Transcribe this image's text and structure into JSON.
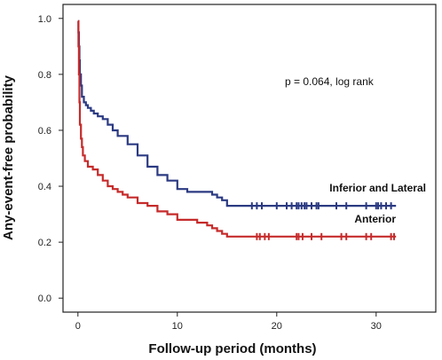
{
  "chart_data": {
    "type": "line",
    "subtype": "kaplan-meier",
    "xlabel": "Follow-up period (months)",
    "ylabel": "Any-event-free probability",
    "xlim": [
      -1.5,
      36
    ],
    "ylim": [
      -0.05,
      1.05
    ],
    "xticks": [
      0,
      10,
      20,
      30
    ],
    "yticks": [
      0.0,
      0.2,
      0.4,
      0.6,
      0.8,
      1.0
    ],
    "xtick_labels": [
      "0",
      "10",
      "20",
      "30"
    ],
    "ytick_labels": [
      "0.0",
      "0.2",
      "0.4",
      "0.6",
      "0.8",
      "1.0"
    ],
    "annotations": [
      {
        "text": "p = 0.064, log rank"
      }
    ],
    "series": [
      {
        "name": "Inferior and Lateral",
        "color": "#2b3a82",
        "x": [
          0,
          0.05,
          0.1,
          0.15,
          0.2,
          0.3,
          0.4,
          0.6,
          0.8,
          1.0,
          1.3,
          1.6,
          2.0,
          2.5,
          3.0,
          3.5,
          4.0,
          5.0,
          6.0,
          7.0,
          8.0,
          9.0,
          10.0,
          11.0,
          12.0,
          13.0,
          13.5,
          14.0,
          14.5,
          15.0,
          32
        ],
        "y": [
          0.99,
          0.95,
          0.9,
          0.85,
          0.8,
          0.76,
          0.72,
          0.7,
          0.69,
          0.68,
          0.67,
          0.66,
          0.65,
          0.64,
          0.62,
          0.6,
          0.58,
          0.55,
          0.51,
          0.47,
          0.44,
          0.42,
          0.39,
          0.38,
          0.38,
          0.38,
          0.37,
          0.36,
          0.35,
          0.33,
          0.33
        ],
        "censor_x": [
          17.5,
          18.0,
          18.5,
          20.0,
          21.0,
          21.5,
          22.0,
          22.2,
          22.5,
          22.8,
          23.0,
          23.5,
          24.0,
          24.2,
          26.0,
          27.0,
          29.0,
          30.0,
          30.2,
          30.5,
          31.0,
          31.5
        ]
      },
      {
        "name": "Anterior",
        "color": "#c62b2b",
        "x": [
          0,
          0.05,
          0.1,
          0.15,
          0.2,
          0.3,
          0.4,
          0.5,
          0.7,
          1.0,
          1.5,
          2.0,
          2.5,
          3.0,
          3.5,
          4.0,
          4.5,
          5.0,
          6.0,
          7.0,
          8.0,
          9.0,
          10.0,
          11.0,
          12.0,
          13.0,
          13.5,
          14.0,
          14.5,
          15.0,
          32
        ],
        "y": [
          0.99,
          0.9,
          0.8,
          0.7,
          0.62,
          0.57,
          0.54,
          0.51,
          0.49,
          0.47,
          0.46,
          0.44,
          0.42,
          0.4,
          0.39,
          0.38,
          0.37,
          0.36,
          0.34,
          0.33,
          0.31,
          0.3,
          0.28,
          0.28,
          0.27,
          0.26,
          0.25,
          0.24,
          0.23,
          0.22,
          0.22
        ],
        "censor_x": [
          18.0,
          18.3,
          18.8,
          19.2,
          22.0,
          22.2,
          22.6,
          23.5,
          24.5,
          26.5,
          27.0,
          29.0,
          29.5,
          31.5,
          31.8
        ]
      }
    ]
  }
}
